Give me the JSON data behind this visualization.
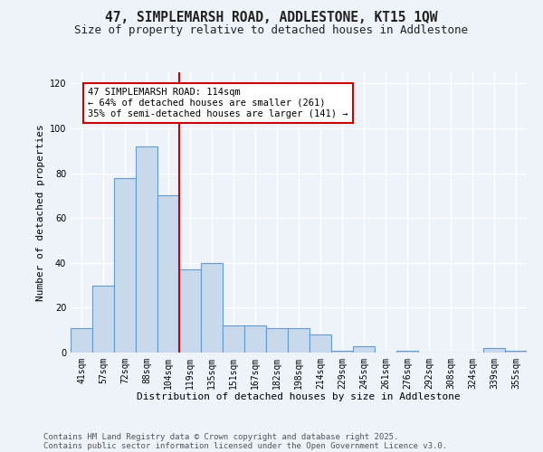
{
  "title_line1": "47, SIMPLEMARSH ROAD, ADDLESTONE, KT15 1QW",
  "title_line2": "Size of property relative to detached houses in Addlestone",
  "xlabel": "Distribution of detached houses by size in Addlestone",
  "ylabel": "Number of detached properties",
  "categories": [
    "41sqm",
    "57sqm",
    "72sqm",
    "88sqm",
    "104sqm",
    "119sqm",
    "135sqm",
    "151sqm",
    "167sqm",
    "182sqm",
    "198sqm",
    "214sqm",
    "229sqm",
    "245sqm",
    "261sqm",
    "276sqm",
    "292sqm",
    "308sqm",
    "324sqm",
    "339sqm",
    "355sqm"
  ],
  "values": [
    11,
    30,
    78,
    92,
    70,
    37,
    40,
    12,
    12,
    11,
    11,
    8,
    1,
    3,
    0,
    1,
    0,
    0,
    0,
    2,
    1
  ],
  "bar_color": "#c8d9ed",
  "bar_edge_color": "#6699cc",
  "vline_x_index": 4.5,
  "vline_color": "#cc0000",
  "annotation_text": "47 SIMPLEMARSH ROAD: 114sqm\n← 64% of detached houses are smaller (261)\n35% of semi-detached houses are larger (141) →",
  "annotation_box_color": "#ffffff",
  "annotation_box_edge_color": "#cc0000",
  "ylim": [
    0,
    125
  ],
  "yticks": [
    0,
    20,
    40,
    60,
    80,
    100,
    120
  ],
  "background_color": "#eef2f9",
  "footer_line1": "Contains HM Land Registry data © Crown copyright and database right 2025.",
  "footer_line2": "Contains public sector information licensed under the Open Government Licence v3.0.",
  "title_fontsize": 10.5,
  "subtitle_fontsize": 9,
  "axis_label_fontsize": 8,
  "tick_fontsize": 7,
  "annotation_fontsize": 7.5,
  "footer_fontsize": 6.5,
  "ylabel_fontsize": 8
}
